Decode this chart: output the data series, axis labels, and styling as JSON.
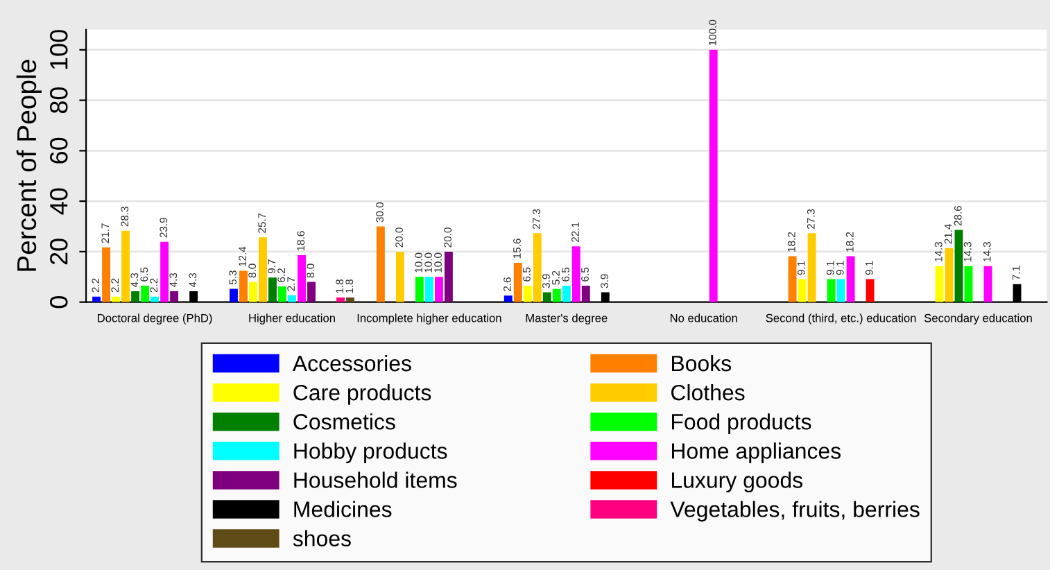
{
  "chart_data": {
    "type": "bar",
    "ylabel": "Percent of People",
    "categories": [
      "Doctoral degree (PhD)",
      "Higher education",
      "Incomplete higher education",
      "Master's degree",
      "No education",
      "Second (third, etc.) education",
      "Secondary education"
    ],
    "series": [
      {
        "name": "Accessories",
        "color": "#0000ff",
        "values": [
          2.2,
          5.3,
          null,
          2.6,
          null,
          null,
          null
        ],
        "value_labels": [
          "2.2",
          "5.3",
          null,
          "2.6",
          null,
          null,
          null
        ]
      },
      {
        "name": "Books",
        "color": "#ff7f00",
        "values": [
          21.7,
          12.4,
          30.0,
          15.6,
          null,
          18.2,
          null
        ],
        "value_labels": [
          "21.7",
          "12.4",
          "30.0",
          "15.6",
          null,
          "18.2",
          null
        ]
      },
      {
        "name": "Care products",
        "color": "#ffff00",
        "values": [
          2.2,
          8.0,
          null,
          6.5,
          null,
          9.1,
          14.3
        ],
        "value_labels": [
          "2.2",
          "8.0",
          null,
          "6.5",
          null,
          "9.1",
          "14.3"
        ]
      },
      {
        "name": "Clothes",
        "color": "#ffcc00",
        "values": [
          28.3,
          25.7,
          20.0,
          27.3,
          null,
          27.3,
          21.4
        ],
        "value_labels": [
          "28.3",
          "25.7",
          "20.0",
          "27.3",
          null,
          "27.3",
          "21.4"
        ]
      },
      {
        "name": "Cosmetics",
        "color": "#007f00",
        "values": [
          4.3,
          9.7,
          null,
          3.9,
          null,
          null,
          28.6
        ],
        "value_labels": [
          "4.3",
          "9.7",
          null,
          "3.9",
          null,
          null,
          "28.6"
        ]
      },
      {
        "name": "Food products",
        "color": "#00ff00",
        "values": [
          6.5,
          6.2,
          10.0,
          5.2,
          null,
          9.1,
          14.3
        ],
        "value_labels": [
          "6.5",
          "6.2",
          "10.0",
          "5.2",
          null,
          "9.1",
          "14.3"
        ]
      },
      {
        "name": "Hobby products",
        "color": "#00ffff",
        "values": [
          2.2,
          2.7,
          10.0,
          6.5,
          null,
          9.1,
          null
        ],
        "value_labels": [
          "2.2",
          "2.7",
          "10.0",
          "6.5",
          null,
          "9.1",
          null
        ]
      },
      {
        "name": "Home appliances",
        "color": "#ff00ff",
        "values": [
          23.9,
          18.6,
          10.0,
          22.1,
          100.0,
          18.2,
          14.3
        ],
        "value_labels": [
          "23.9",
          "18.6",
          "10.0",
          "22.1",
          "100.0",
          "18.2",
          "14.3"
        ]
      },
      {
        "name": "Household items",
        "color": "#7f007f",
        "values": [
          4.3,
          8.0,
          20.0,
          6.5,
          null,
          null,
          null
        ],
        "value_labels": [
          "4.3",
          "8.0",
          "20.0",
          "6.5",
          null,
          null,
          null
        ]
      },
      {
        "name": "Luxury goods",
        "color": "#ff0000",
        "values": [
          null,
          null,
          null,
          null,
          null,
          9.1,
          null
        ],
        "value_labels": [
          null,
          null,
          null,
          null,
          null,
          "9.1",
          null
        ]
      },
      {
        "name": "Medicines",
        "color": "#000000",
        "values": [
          4.3,
          null,
          null,
          3.9,
          null,
          null,
          7.1
        ],
        "value_labels": [
          "4.3",
          null,
          null,
          "3.9",
          null,
          null,
          "7.1"
        ]
      },
      {
        "name": "Vegetables, fruits, berries",
        "color": "#ff0080",
        "values": [
          null,
          1.8,
          null,
          null,
          null,
          null,
          null
        ],
        "value_labels": [
          null,
          "1.8",
          null,
          null,
          null,
          null,
          null
        ]
      },
      {
        "name": "shoes",
        "color": "#5f4b16",
        "values": [
          null,
          1.8,
          null,
          null,
          null,
          null,
          null
        ],
        "value_labels": [
          null,
          "1.8",
          null,
          null,
          null,
          null,
          null
        ]
      }
    ],
    "ylim": [
      0,
      108
    ],
    "yticks": [
      0,
      20,
      40,
      60,
      80,
      100
    ],
    "grid": "y",
    "legend": "bottom"
  }
}
